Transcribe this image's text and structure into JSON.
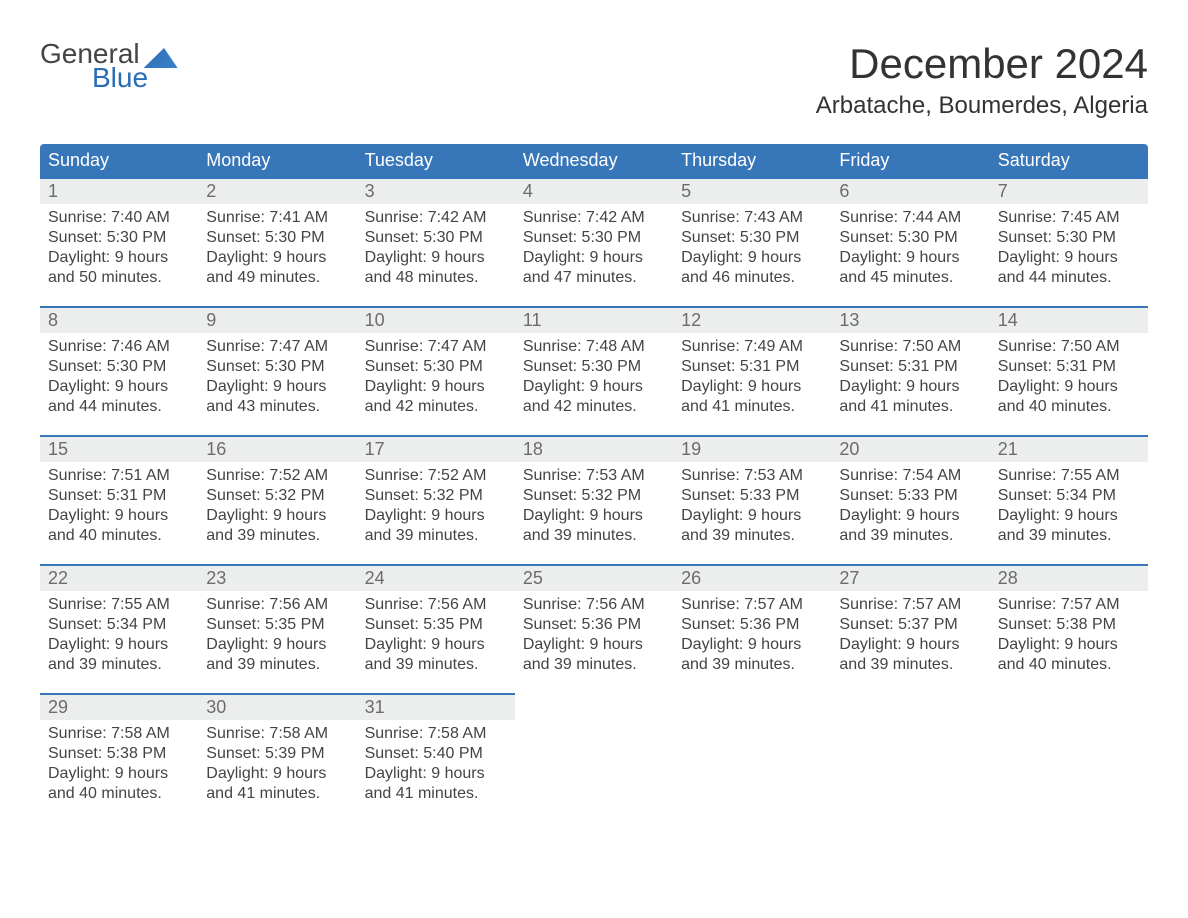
{
  "logo": {
    "word1": "General",
    "word2": "Blue"
  },
  "title": "December 2024",
  "location": "Arbatache, Boumerdes, Algeria",
  "colors": {
    "header_bg": "#3776b8",
    "header_fg": "#ffffff",
    "daynum_bg": "#eceeee",
    "daynum_fg": "#6c6c6c",
    "cell_border": "#3776b8",
    "logo_accent": "#2a6db5",
    "page_bg": "#ffffff",
    "text": "#444444"
  },
  "weekdays": [
    "Sunday",
    "Monday",
    "Tuesday",
    "Wednesday",
    "Thursday",
    "Friday",
    "Saturday"
  ],
  "weeks": [
    [
      {
        "n": "1",
        "sr": "Sunrise: 7:40 AM",
        "ss": "Sunset: 5:30 PM",
        "d1": "Daylight: 9 hours",
        "d2": "and 50 minutes."
      },
      {
        "n": "2",
        "sr": "Sunrise: 7:41 AM",
        "ss": "Sunset: 5:30 PM",
        "d1": "Daylight: 9 hours",
        "d2": "and 49 minutes."
      },
      {
        "n": "3",
        "sr": "Sunrise: 7:42 AM",
        "ss": "Sunset: 5:30 PM",
        "d1": "Daylight: 9 hours",
        "d2": "and 48 minutes."
      },
      {
        "n": "4",
        "sr": "Sunrise: 7:42 AM",
        "ss": "Sunset: 5:30 PM",
        "d1": "Daylight: 9 hours",
        "d2": "and 47 minutes."
      },
      {
        "n": "5",
        "sr": "Sunrise: 7:43 AM",
        "ss": "Sunset: 5:30 PM",
        "d1": "Daylight: 9 hours",
        "d2": "and 46 minutes."
      },
      {
        "n": "6",
        "sr": "Sunrise: 7:44 AM",
        "ss": "Sunset: 5:30 PM",
        "d1": "Daylight: 9 hours",
        "d2": "and 45 minutes."
      },
      {
        "n": "7",
        "sr": "Sunrise: 7:45 AM",
        "ss": "Sunset: 5:30 PM",
        "d1": "Daylight: 9 hours",
        "d2": "and 44 minutes."
      }
    ],
    [
      {
        "n": "8",
        "sr": "Sunrise: 7:46 AM",
        "ss": "Sunset: 5:30 PM",
        "d1": "Daylight: 9 hours",
        "d2": "and 44 minutes."
      },
      {
        "n": "9",
        "sr": "Sunrise: 7:47 AM",
        "ss": "Sunset: 5:30 PM",
        "d1": "Daylight: 9 hours",
        "d2": "and 43 minutes."
      },
      {
        "n": "10",
        "sr": "Sunrise: 7:47 AM",
        "ss": "Sunset: 5:30 PM",
        "d1": "Daylight: 9 hours",
        "d2": "and 42 minutes."
      },
      {
        "n": "11",
        "sr": "Sunrise: 7:48 AM",
        "ss": "Sunset: 5:30 PM",
        "d1": "Daylight: 9 hours",
        "d2": "and 42 minutes."
      },
      {
        "n": "12",
        "sr": "Sunrise: 7:49 AM",
        "ss": "Sunset: 5:31 PM",
        "d1": "Daylight: 9 hours",
        "d2": "and 41 minutes."
      },
      {
        "n": "13",
        "sr": "Sunrise: 7:50 AM",
        "ss": "Sunset: 5:31 PM",
        "d1": "Daylight: 9 hours",
        "d2": "and 41 minutes."
      },
      {
        "n": "14",
        "sr": "Sunrise: 7:50 AM",
        "ss": "Sunset: 5:31 PM",
        "d1": "Daylight: 9 hours",
        "d2": "and 40 minutes."
      }
    ],
    [
      {
        "n": "15",
        "sr": "Sunrise: 7:51 AM",
        "ss": "Sunset: 5:31 PM",
        "d1": "Daylight: 9 hours",
        "d2": "and 40 minutes."
      },
      {
        "n": "16",
        "sr": "Sunrise: 7:52 AM",
        "ss": "Sunset: 5:32 PM",
        "d1": "Daylight: 9 hours",
        "d2": "and 39 minutes."
      },
      {
        "n": "17",
        "sr": "Sunrise: 7:52 AM",
        "ss": "Sunset: 5:32 PM",
        "d1": "Daylight: 9 hours",
        "d2": "and 39 minutes."
      },
      {
        "n": "18",
        "sr": "Sunrise: 7:53 AM",
        "ss": "Sunset: 5:32 PM",
        "d1": "Daylight: 9 hours",
        "d2": "and 39 minutes."
      },
      {
        "n": "19",
        "sr": "Sunrise: 7:53 AM",
        "ss": "Sunset: 5:33 PM",
        "d1": "Daylight: 9 hours",
        "d2": "and 39 minutes."
      },
      {
        "n": "20",
        "sr": "Sunrise: 7:54 AM",
        "ss": "Sunset: 5:33 PM",
        "d1": "Daylight: 9 hours",
        "d2": "and 39 minutes."
      },
      {
        "n": "21",
        "sr": "Sunrise: 7:55 AM",
        "ss": "Sunset: 5:34 PM",
        "d1": "Daylight: 9 hours",
        "d2": "and 39 minutes."
      }
    ],
    [
      {
        "n": "22",
        "sr": "Sunrise: 7:55 AM",
        "ss": "Sunset: 5:34 PM",
        "d1": "Daylight: 9 hours",
        "d2": "and 39 minutes."
      },
      {
        "n": "23",
        "sr": "Sunrise: 7:56 AM",
        "ss": "Sunset: 5:35 PM",
        "d1": "Daylight: 9 hours",
        "d2": "and 39 minutes."
      },
      {
        "n": "24",
        "sr": "Sunrise: 7:56 AM",
        "ss": "Sunset: 5:35 PM",
        "d1": "Daylight: 9 hours",
        "d2": "and 39 minutes."
      },
      {
        "n": "25",
        "sr": "Sunrise: 7:56 AM",
        "ss": "Sunset: 5:36 PM",
        "d1": "Daylight: 9 hours",
        "d2": "and 39 minutes."
      },
      {
        "n": "26",
        "sr": "Sunrise: 7:57 AM",
        "ss": "Sunset: 5:36 PM",
        "d1": "Daylight: 9 hours",
        "d2": "and 39 minutes."
      },
      {
        "n": "27",
        "sr": "Sunrise: 7:57 AM",
        "ss": "Sunset: 5:37 PM",
        "d1": "Daylight: 9 hours",
        "d2": "and 39 minutes."
      },
      {
        "n": "28",
        "sr": "Sunrise: 7:57 AM",
        "ss": "Sunset: 5:38 PM",
        "d1": "Daylight: 9 hours",
        "d2": "and 40 minutes."
      }
    ],
    [
      {
        "n": "29",
        "sr": "Sunrise: 7:58 AM",
        "ss": "Sunset: 5:38 PM",
        "d1": "Daylight: 9 hours",
        "d2": "and 40 minutes."
      },
      {
        "n": "30",
        "sr": "Sunrise: 7:58 AM",
        "ss": "Sunset: 5:39 PM",
        "d1": "Daylight: 9 hours",
        "d2": "and 41 minutes."
      },
      {
        "n": "31",
        "sr": "Sunrise: 7:58 AM",
        "ss": "Sunset: 5:40 PM",
        "d1": "Daylight: 9 hours",
        "d2": "and 41 minutes."
      },
      null,
      null,
      null,
      null
    ]
  ]
}
